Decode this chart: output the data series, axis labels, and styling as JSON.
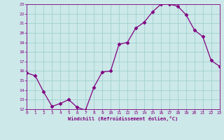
{
  "x": [
    0,
    1,
    2,
    3,
    4,
    5,
    6,
    7,
    8,
    9,
    10,
    11,
    12,
    13,
    14,
    15,
    16,
    17,
    18,
    19,
    20,
    21,
    22,
    23
  ],
  "y": [
    15.8,
    15.5,
    13.8,
    12.3,
    12.6,
    13.0,
    12.2,
    11.9,
    14.3,
    15.9,
    16.0,
    18.8,
    19.0,
    20.5,
    21.1,
    22.2,
    23.0,
    23.0,
    22.8,
    21.9,
    20.3,
    19.6,
    17.1,
    16.5
  ],
  "line_color": "#800080",
  "marker": "D",
  "marker_size": 2.5,
  "bg_color": "#cce8e8",
  "grid_color": "#99cccc",
  "xlabel": "Windchill (Refroidissement éolien,°C)",
  "xlabel_color": "#800080",
  "tick_color": "#800080",
  "ylim": [
    12,
    23
  ],
  "xlim": [
    0,
    23
  ],
  "yticks": [
    12,
    13,
    14,
    15,
    16,
    17,
    18,
    19,
    20,
    21,
    22,
    23
  ],
  "xticks": [
    0,
    1,
    2,
    3,
    4,
    5,
    6,
    7,
    8,
    9,
    10,
    11,
    12,
    13,
    14,
    15,
    16,
    17,
    18,
    19,
    20,
    21,
    22,
    23
  ]
}
